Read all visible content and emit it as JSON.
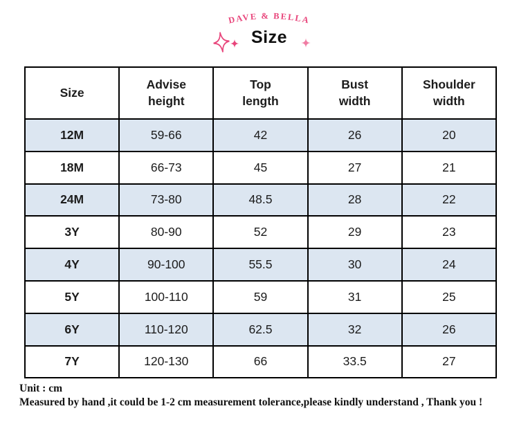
{
  "brand": {
    "name": "DAVE & BELLA",
    "page_title": "Size"
  },
  "table": {
    "headers": [
      "Size",
      "Advise\nheight",
      "Top\nlength",
      "Bust\nwidth",
      "Shoulder\nwidth"
    ],
    "rows": [
      [
        "12M",
        "59-66",
        "42",
        "26",
        "20"
      ],
      [
        "18M",
        "66-73",
        "45",
        "27",
        "21"
      ],
      [
        "24M",
        "73-80",
        "48.5",
        "28",
        "22"
      ],
      [
        "3Y",
        "80-90",
        "52",
        "29",
        "23"
      ],
      [
        "4Y",
        "90-100",
        "55.5",
        "30",
        "24"
      ],
      [
        "5Y",
        "100-110",
        "59",
        "31",
        "25"
      ],
      [
        "6Y",
        "110-120",
        "62.5",
        "32",
        "26"
      ],
      [
        "7Y",
        "120-130",
        "66",
        "33.5",
        "27"
      ]
    ]
  },
  "footer": {
    "unit": "Unit : cm",
    "note": "Measured by hand ,it could be 1-2 cm measurement tolerance,please kindly understand , Thank you !"
  },
  "colors": {
    "accent_pink": "#e8457b",
    "accent_pink_light": "#f07ca3",
    "row_alt_blue": "#dce6f1",
    "table_border": "#000000"
  }
}
